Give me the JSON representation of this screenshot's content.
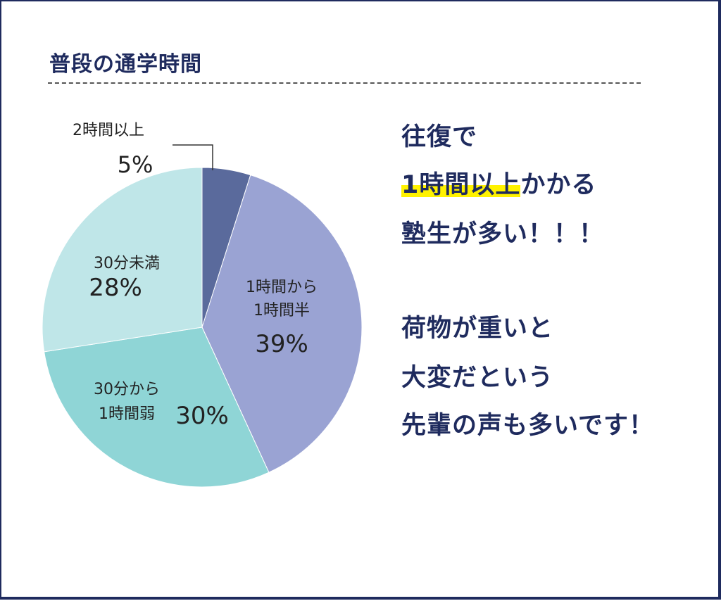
{
  "title": "普段の通学時間",
  "chart_data": {
    "type": "pie",
    "slices": [
      {
        "label": "2時間以上",
        "label_lines": [
          "2時間以上"
        ],
        "percent_label": "5%",
        "value": 5,
        "color": "#5a6a9c"
      },
      {
        "label": "1時間から1時間半",
        "label_lines": [
          "1時間から",
          "1時間半"
        ],
        "percent_label": "39%",
        "value": 39,
        "color": "#9aa3d3"
      },
      {
        "label": "30分から1時間弱",
        "label_lines": [
          "30分から",
          "1時間弱"
        ],
        "percent_label": "30%",
        "value": 30,
        "color": "#8fd5d6"
      },
      {
        "label": "30分未満",
        "label_lines": [
          "30分未満"
        ],
        "percent_label": "28%",
        "value": 28,
        "color": "#bfe6e8"
      }
    ]
  },
  "message_1": {
    "line1": "往復で",
    "line2_highlight": "1時間以上",
    "line2_rest": "かかる",
    "line3": "塾生が多い！！！"
  },
  "message_2": {
    "line1": "荷物が重いと",
    "line2": "大変だという",
    "line3": "先輩の声も多いです！"
  }
}
